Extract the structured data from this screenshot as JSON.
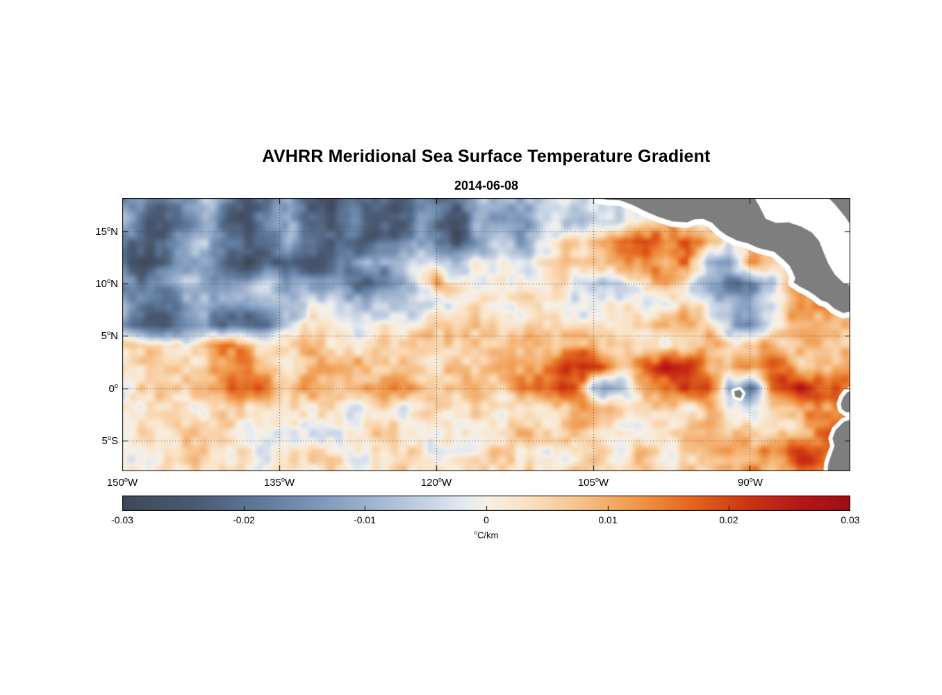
{
  "title": "AVHRR Meridional Sea Surface Temperature Gradient",
  "subtitle": "2014-06-08",
  "colors": {
    "land": "#7e7e7e",
    "coast_halo": "#ffffff",
    "axis": "#000000",
    "grid": "#404040",
    "background": "#ffffff"
  },
  "axes": {
    "lat_ticks": [
      {
        "pre": "15",
        "sup": "o",
        "post": "N",
        "value": 15
      },
      {
        "pre": "10",
        "sup": "o",
        "post": "N",
        "value": 10
      },
      {
        "pre": "5",
        "sup": "o",
        "post": "N",
        "value": 5
      },
      {
        "pre": "0",
        "sup": "o",
        "post": "",
        "value": 0
      },
      {
        "pre": "5",
        "sup": "o",
        "post": "S",
        "value": -5
      }
    ],
    "lon_ticks": [
      {
        "pre": "150",
        "sup": "o",
        "post": "W",
        "value": -150
      },
      {
        "pre": "135",
        "sup": "o",
        "post": "W",
        "value": -135
      },
      {
        "pre": "120",
        "sup": "o",
        "post": "W",
        "value": -120
      },
      {
        "pre": "105",
        "sup": "o",
        "post": "W",
        "value": -105
      },
      {
        "pre": "90",
        "sup": "o",
        "post": "W",
        "value": -90
      }
    ]
  },
  "colorbar": {
    "tick_labels": [
      "-0.03",
      "-0.02",
      "-0.01",
      "0",
      "0.01",
      "0.02",
      "0.03"
    ],
    "tick_values": [
      -0.03,
      -0.02,
      -0.01,
      0,
      0.01,
      0.02,
      0.03
    ],
    "unit_pre": "",
    "unit_sup": "o",
    "unit_post": "C/km"
  },
  "chart_data": {
    "type": "heatmap",
    "title": "AVHRR Meridional Sea Surface Temperature Gradient",
    "date": "2014-06-08",
    "unit": "degC/km",
    "lon_range": [
      -150,
      -80.4
    ],
    "lat_range": [
      -7.93,
      18.17
    ],
    "value_range": [
      -0.03,
      0.03
    ],
    "lon0": -150,
    "dlon": 2,
    "nlon": 37,
    "lat0": 18,
    "dlat": -2,
    "nlat": 14,
    "values_scale": 0.001,
    "values": [
      [
        -10,
        -15,
        -22,
        -18,
        -10,
        -20,
        -26,
        -18,
        -10,
        -22,
        -26,
        -16,
        -20,
        -24,
        -14,
        -18,
        -22,
        -12,
        -8,
        -10,
        -6,
        -4,
        -6,
        -4,
        -2,
        0,
        2,
        4,
        2,
        0,
        -2,
        0,
        2,
        0,
        2,
        4,
        2
      ],
      [
        -12,
        -18,
        -25,
        -20,
        -12,
        -24,
        -28,
        -20,
        -14,
        -26,
        -28,
        -18,
        -24,
        -26,
        -16,
        -22,
        -26,
        -14,
        -10,
        -12,
        -8,
        -6,
        -8,
        -4,
        0,
        4,
        8,
        6,
        2,
        6,
        4,
        2,
        4,
        2,
        4,
        6,
        4
      ],
      [
        -15,
        -20,
        -26,
        -15,
        -8,
        -20,
        -26,
        -22,
        -10,
        -20,
        -26,
        -20,
        -26,
        -22,
        -12,
        -18,
        -24,
        -10,
        -6,
        -8,
        -4,
        0,
        4,
        10,
        18,
        22,
        12,
        20,
        10,
        4,
        8,
        6,
        8,
        6,
        4,
        6,
        4
      ],
      [
        -20,
        -26,
        -24,
        -14,
        -10,
        -22,
        -28,
        -26,
        -20,
        -26,
        -24,
        -14,
        -8,
        -12,
        -6,
        -4,
        -2,
        0,
        -2,
        0,
        2,
        4,
        2,
        6,
        8,
        12,
        6,
        18,
        -10,
        -16,
        10,
        6,
        4,
        6,
        4,
        6,
        4
      ],
      [
        -12,
        -18,
        -10,
        -6,
        -8,
        -14,
        -10,
        -6,
        -10,
        -14,
        -16,
        -20,
        -24,
        -18,
        -8,
        12,
        0,
        -4,
        -2,
        0,
        2,
        4,
        -4,
        -10,
        -4,
        6,
        10,
        4,
        -8,
        -18,
        -22,
        -8,
        12,
        16,
        10,
        12,
        10
      ],
      [
        -10,
        -16,
        -20,
        -12,
        -6,
        -10,
        -14,
        -8,
        -4,
        -6,
        -4,
        -6,
        -8,
        -6,
        -4,
        -2,
        -4,
        0,
        2,
        0,
        2,
        0,
        -2,
        2,
        4,
        2,
        0,
        4,
        2,
        -6,
        -12,
        -4,
        8,
        12,
        14,
        10,
        8
      ],
      [
        -14,
        -22,
        -26,
        -20,
        -12,
        -18,
        -22,
        -14,
        -6,
        0,
        2,
        0,
        2,
        4,
        2,
        4,
        2,
        4,
        6,
        4,
        6,
        8,
        6,
        4,
        6,
        8,
        10,
        8,
        6,
        -6,
        -14,
        -4,
        8,
        10,
        8,
        6,
        8
      ],
      [
        2,
        4,
        2,
        4,
        8,
        12,
        8,
        4,
        2,
        4,
        2,
        4,
        2,
        4,
        6,
        4,
        2,
        4,
        6,
        4,
        6,
        8,
        10,
        6,
        8,
        6,
        4,
        8,
        10,
        6,
        8,
        10,
        6,
        8,
        6,
        8,
        10
      ],
      [
        4,
        2,
        4,
        6,
        4,
        6,
        8,
        6,
        4,
        6,
        8,
        6,
        8,
        10,
        8,
        6,
        8,
        10,
        12,
        10,
        14,
        18,
        22,
        16,
        10,
        16,
        20,
        22,
        14,
        8,
        14,
        18,
        12,
        10,
        12,
        10,
        8
      ],
      [
        2,
        4,
        6,
        4,
        8,
        12,
        16,
        12,
        8,
        12,
        8,
        10,
        12,
        10,
        8,
        10,
        8,
        6,
        8,
        10,
        16,
        22,
        12,
        -12,
        -6,
        10,
        18,
        24,
        18,
        -14,
        -20,
        16,
        22,
        18,
        22,
        16,
        12
      ],
      [
        4,
        2,
        4,
        2,
        4,
        6,
        4,
        6,
        4,
        2,
        4,
        2,
        4,
        2,
        4,
        2,
        4,
        6,
        4,
        2,
        4,
        6,
        8,
        6,
        4,
        8,
        6,
        4,
        6,
        4,
        2,
        6,
        4,
        8,
        14,
        18,
        12
      ],
      [
        2,
        4,
        2,
        4,
        2,
        4,
        2,
        4,
        2,
        4,
        2,
        0,
        2,
        4,
        2,
        0,
        2,
        4,
        2,
        4,
        2,
        4,
        6,
        4,
        2,
        4,
        2,
        4,
        6,
        4,
        6,
        4,
        6,
        10,
        16,
        12,
        8
      ],
      [
        2,
        2,
        4,
        2,
        4,
        2,
        4,
        2,
        4,
        2,
        4,
        2,
        4,
        2,
        4,
        2,
        0,
        2,
        4,
        2,
        4,
        2,
        4,
        6,
        4,
        6,
        4,
        6,
        8,
        12,
        8,
        14,
        18,
        12,
        16,
        10,
        8
      ],
      [
        4,
        2,
        4,
        2,
        4,
        2,
        4,
        2,
        4,
        2,
        4,
        2,
        4,
        6,
        2,
        4,
        2,
        4,
        2,
        4,
        6,
        4,
        6,
        4,
        6,
        4,
        6,
        8,
        6,
        8,
        12,
        8,
        16,
        20,
        14,
        10,
        8
      ]
    ],
    "noise_octaves": [
      {
        "scale": 34,
        "amp": 0.005,
        "offset": 0
      },
      {
        "scale": 13,
        "amp": 0.0035,
        "offset": 57
      }
    ],
    "colormap_stops": [
      {
        "t": 0.0,
        "c": "#3f4857"
      },
      {
        "t": 0.1,
        "c": "#4a5a74"
      },
      {
        "t": 0.2,
        "c": "#627d9f"
      },
      {
        "t": 0.3,
        "c": "#8ba3c4"
      },
      {
        "t": 0.4,
        "c": "#bccbde"
      },
      {
        "t": 0.47,
        "c": "#e4eaf0"
      },
      {
        "t": 0.5,
        "c": "#f6f1e8"
      },
      {
        "t": 0.55,
        "c": "#f9e4c8"
      },
      {
        "t": 0.62,
        "c": "#f7c693"
      },
      {
        "t": 0.7,
        "c": "#f09c4f"
      },
      {
        "t": 0.78,
        "c": "#e4671f"
      },
      {
        "t": 0.86,
        "c": "#cd3414"
      },
      {
        "t": 0.93,
        "c": "#b51718"
      },
      {
        "t": 1.0,
        "c": "#9e0d15"
      }
    ],
    "land": {
      "mainland": [
        [
          -105.6,
          19.0
        ],
        [
          -104.6,
          18.2
        ],
        [
          -103.6,
          18.0
        ],
        [
          -102.4,
          17.95
        ],
        [
          -101.2,
          17.5
        ],
        [
          -100.0,
          16.9
        ],
        [
          -98.8,
          16.4
        ],
        [
          -97.4,
          15.95
        ],
        [
          -96.0,
          15.85
        ],
        [
          -95.3,
          16.15
        ],
        [
          -94.5,
          16.2
        ],
        [
          -93.6,
          15.8
        ],
        [
          -92.9,
          15.1
        ],
        [
          -92.2,
          14.6
        ],
        [
          -91.2,
          14.1
        ],
        [
          -90.2,
          13.85
        ],
        [
          -89.2,
          13.4
        ],
        [
          -88.2,
          13.15
        ],
        [
          -87.7,
          13.05
        ],
        [
          -87.3,
          12.7
        ],
        [
          -86.8,
          12.3
        ],
        [
          -86.2,
          11.7
        ],
        [
          -85.9,
          11.1
        ],
        [
          -85.65,
          10.5
        ],
        [
          -85.8,
          10.1
        ],
        [
          -85.2,
          9.7
        ],
        [
          -84.6,
          9.4
        ],
        [
          -83.8,
          8.9
        ],
        [
          -83.2,
          8.4
        ],
        [
          -82.6,
          8.2
        ],
        [
          -81.9,
          7.6
        ],
        [
          -81.1,
          7.2
        ],
        [
          -80.5,
          7.3
        ],
        [
          -79.9,
          8.0
        ],
        [
          -79.4,
          8.6
        ],
        [
          -77.5,
          8.8
        ],
        [
          -77.5,
          19.0
        ]
      ],
      "caribbean_water": [
        [
          -89.8,
          18.6
        ],
        [
          -89.1,
          17.4
        ],
        [
          -88.5,
          16.2
        ],
        [
          -87.5,
          15.8
        ],
        [
          -86.3,
          15.85
        ],
        [
          -85.1,
          15.45
        ],
        [
          -84.1,
          14.9
        ],
        [
          -83.4,
          14.1
        ],
        [
          -83.0,
          13.1
        ],
        [
          -82.5,
          11.9
        ],
        [
          -81.9,
          10.9
        ],
        [
          -81.1,
          10.1
        ],
        [
          -80.2,
          9.7
        ],
        [
          -79.2,
          9.6
        ],
        [
          -78.6,
          10.4
        ],
        [
          -78.9,
          11.8
        ],
        [
          -79.3,
          13.4
        ],
        [
          -80.0,
          15.0
        ],
        [
          -80.9,
          16.4
        ],
        [
          -81.9,
          17.6
        ],
        [
          -82.9,
          18.6
        ]
      ],
      "galapagos": [
        [
          -91.5,
          -0.3
        ],
        [
          -91.0,
          -0.15
        ],
        [
          -90.7,
          -0.5
        ],
        [
          -90.9,
          -0.95
        ],
        [
          -91.4,
          -0.8
        ]
      ],
      "ecuador_coast": [
        [
          -80.0,
          -0.1
        ],
        [
          -80.7,
          -0.4
        ],
        [
          -81.1,
          -0.9
        ],
        [
          -81.3,
          -1.5
        ],
        [
          -81.2,
          -2.0
        ],
        [
          -80.8,
          -2.3
        ],
        [
          -80.0,
          -2.3
        ]
      ],
      "peru_coast": [
        [
          -80.0,
          -2.9
        ],
        [
          -81.0,
          -3.2
        ],
        [
          -81.8,
          -4.0
        ],
        [
          -82.1,
          -4.8
        ],
        [
          -81.9,
          -5.5
        ],
        [
          -82.2,
          -6.3
        ],
        [
          -82.5,
          -7.2
        ],
        [
          -82.6,
          -8.3
        ],
        [
          -79.0,
          -8.3
        ],
        [
          -79.0,
          -2.9
        ]
      ]
    }
  }
}
